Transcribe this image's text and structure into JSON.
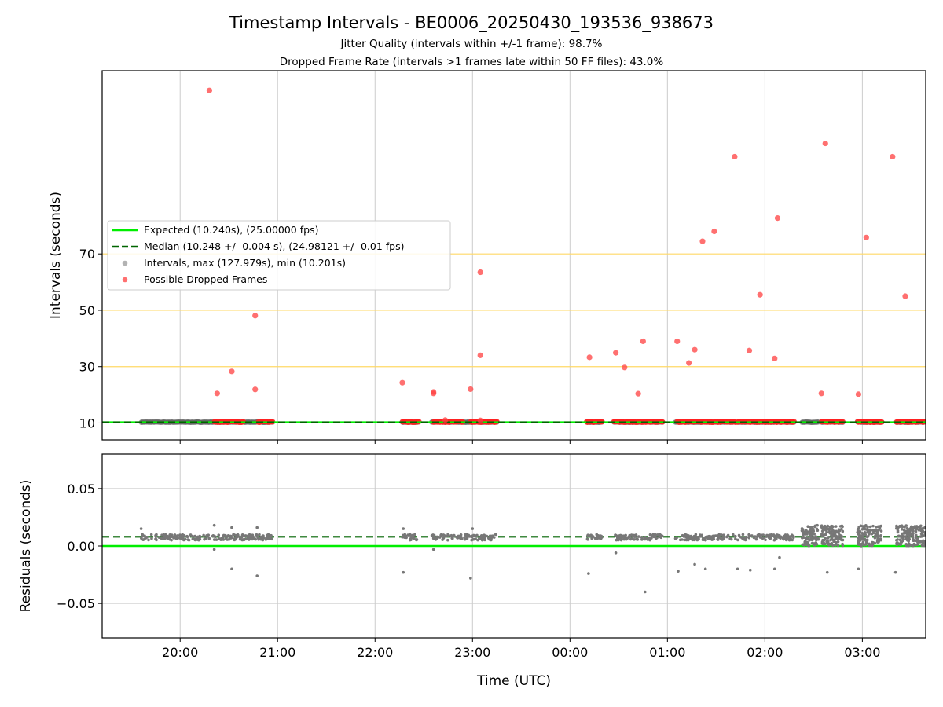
{
  "chart_data": {
    "type": "scatter",
    "title": "Timestamp Intervals - BE0006_20250430_193536_938673",
    "subtitle_1": "Jitter Quality (intervals within +/-1 frame): 98.7%",
    "subtitle_2": "Dropped Frame Rate (intervals >1 frames late within 50 FF files): 43.0%",
    "xlabel": "Time (UTC)",
    "x_ticks": [
      "20:00",
      "21:00",
      "22:00",
      "23:00",
      "00:00",
      "01:00",
      "02:00",
      "03:00"
    ],
    "x_tick_hours": [
      20,
      21,
      22,
      23,
      24,
      25,
      26,
      27
    ],
    "xlim_hours": [
      19.2,
      27.65
    ],
    "top_panel": {
      "ylabel": "Intervals (seconds)",
      "ylim": [
        4,
        135
      ],
      "y_ticks": [
        "10",
        "30",
        "50",
        "70"
      ],
      "y_tick_values": [
        10,
        30,
        50,
        70
      ],
      "reference_lines": [
        30,
        50,
        70
      ],
      "reference_color": "#ffd966",
      "legend_position": "center-left",
      "legend": [
        {
          "label": "Expected (10.240s), (25.00000 fps)",
          "kind": "line",
          "color": "#00ee00"
        },
        {
          "label": "Median (10.248 +/- 0.004 s), (24.98121 +/- 0.01 fps)",
          "kind": "dashed",
          "color": "#006400"
        },
        {
          "label": "Intervals, max (127.979s), min (10.201s)",
          "kind": "dot",
          "color": "#999999"
        },
        {
          "label": "Possible Dropped Frames",
          "kind": "dot",
          "color": "#ff4040"
        }
      ],
      "expected_value": 10.24,
      "median_value": 10.248,
      "interval_clusters_hours": [
        [
          19.6,
          20.95
        ],
        [
          22.28,
          22.45
        ],
        [
          22.58,
          23.25
        ],
        [
          24.17,
          24.33
        ],
        [
          24.45,
          24.95
        ],
        [
          25.08,
          25.7
        ],
        [
          25.72,
          26.3
        ],
        [
          26.38,
          26.55
        ],
        [
          26.58,
          26.8
        ],
        [
          26.95,
          27.2
        ],
        [
          27.35,
          27.65
        ]
      ],
      "interval_y_range": [
        10.201,
        10.7
      ],
      "dropped_clusters_hours": [
        [
          20.35,
          20.65
        ],
        [
          20.8,
          20.95
        ],
        [
          22.28,
          22.45
        ],
        [
          22.6,
          22.78
        ],
        [
          22.8,
          22.9
        ],
        [
          22.98,
          23.25
        ],
        [
          24.17,
          24.33
        ],
        [
          24.45,
          24.95
        ],
        [
          25.1,
          25.45
        ],
        [
          25.45,
          25.7
        ],
        [
          25.72,
          26.12
        ],
        [
          26.12,
          26.3
        ],
        [
          26.58,
          26.8
        ],
        [
          26.95,
          27.2
        ],
        [
          27.35,
          27.65
        ]
      ],
      "dropped_points": [
        {
          "x": 20.3,
          "y": 127.979
        },
        {
          "x": 20.38,
          "y": 20.5
        },
        {
          "x": 20.53,
          "y": 28.3
        },
        {
          "x": 20.77,
          "y": 48.1
        },
        {
          "x": 20.77,
          "y": 21.9
        },
        {
          "x": 22.28,
          "y": 24.3
        },
        {
          "x": 22.6,
          "y": 20.5
        },
        {
          "x": 22.6,
          "y": 21.0
        },
        {
          "x": 22.72,
          "y": 11.0
        },
        {
          "x": 22.98,
          "y": 22.0
        },
        {
          "x": 23.08,
          "y": 34.0
        },
        {
          "x": 23.08,
          "y": 63.5
        },
        {
          "x": 23.08,
          "y": 10.9
        },
        {
          "x": 24.2,
          "y": 33.3
        },
        {
          "x": 24.47,
          "y": 34.9
        },
        {
          "x": 24.56,
          "y": 29.7
        },
        {
          "x": 24.7,
          "y": 20.4
        },
        {
          "x": 24.75,
          "y": 39.0
        },
        {
          "x": 25.1,
          "y": 39.0
        },
        {
          "x": 25.22,
          "y": 31.3
        },
        {
          "x": 25.28,
          "y": 36.0
        },
        {
          "x": 25.36,
          "y": 74.5
        },
        {
          "x": 25.48,
          "y": 78.0
        },
        {
          "x": 25.69,
          "y": 104.5
        },
        {
          "x": 25.84,
          "y": 35.7
        },
        {
          "x": 25.95,
          "y": 55.5
        },
        {
          "x": 26.1,
          "y": 32.9
        },
        {
          "x": 26.13,
          "y": 82.7
        },
        {
          "x": 26.58,
          "y": 20.5
        },
        {
          "x": 26.62,
          "y": 109.2
        },
        {
          "x": 26.96,
          "y": 20.2
        },
        {
          "x": 27.04,
          "y": 75.8
        },
        {
          "x": 27.31,
          "y": 104.5
        },
        {
          "x": 27.44,
          "y": 55.0
        }
      ]
    },
    "bottom_panel": {
      "ylabel": "Residuals (seconds)",
      "ylim": [
        -0.08,
        0.08
      ],
      "y_ticks": [
        "0.05",
        "0.00",
        "−0.05"
      ],
      "y_tick_values": [
        0.05,
        0.0,
        -0.05
      ],
      "expected_residual": 0.0,
      "median_residual": 0.008,
      "residual_y_range": [
        0.0,
        0.018
      ],
      "outlier_points": [
        {
          "x": 19.6,
          "y": 0.015
        },
        {
          "x": 20.35,
          "y": 0.018
        },
        {
          "x": 20.35,
          "y": -0.003
        },
        {
          "x": 20.53,
          "y": -0.02
        },
        {
          "x": 20.53,
          "y": 0.016
        },
        {
          "x": 20.79,
          "y": -0.026
        },
        {
          "x": 20.79,
          "y": 0.016
        },
        {
          "x": 22.29,
          "y": -0.023
        },
        {
          "x": 22.29,
          "y": 0.015
        },
        {
          "x": 22.6,
          "y": -0.003
        },
        {
          "x": 22.98,
          "y": -0.028
        },
        {
          "x": 23.0,
          "y": 0.015
        },
        {
          "x": 24.19,
          "y": -0.024
        },
        {
          "x": 24.47,
          "y": -0.006
        },
        {
          "x": 24.77,
          "y": -0.04
        },
        {
          "x": 25.11,
          "y": -0.022
        },
        {
          "x": 25.28,
          "y": -0.016
        },
        {
          "x": 25.39,
          "y": -0.02
        },
        {
          "x": 25.72,
          "y": -0.02
        },
        {
          "x": 25.85,
          "y": -0.021
        },
        {
          "x": 26.1,
          "y": -0.02
        },
        {
          "x": 26.15,
          "y": -0.01
        },
        {
          "x": 26.64,
          "y": -0.023
        },
        {
          "x": 26.96,
          "y": -0.02
        },
        {
          "x": 27.34,
          "y": -0.023
        }
      ]
    }
  }
}
